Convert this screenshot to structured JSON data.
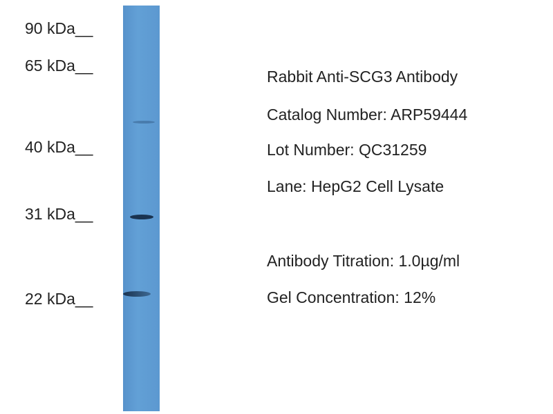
{
  "markers": [
    "90 kDa__",
    "65 kDa__",
    "40 kDa__",
    "31 kDa__",
    "22 kDa__"
  ],
  "lane_color": "#5e9ad0",
  "band_color": "#1a3350",
  "info": {
    "antibody": "Rabbit Anti-SCG3 Antibody",
    "catalog": "Catalog Number: ARP59444",
    "lot": "Lot Number: QC31259",
    "lane": "Lane: HepG2 Cell Lysate",
    "titration": "Antibody Titration: 1.0µg/ml",
    "gel": "Gel Concentration: 12%"
  }
}
